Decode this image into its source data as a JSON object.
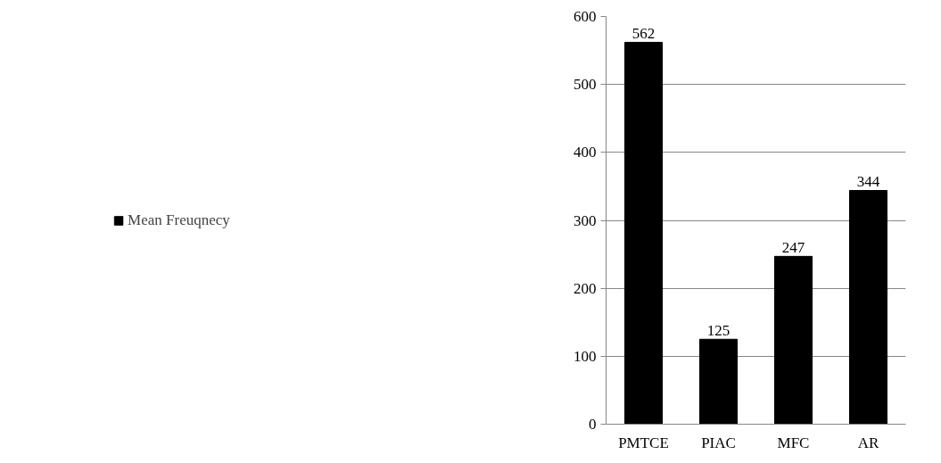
{
  "chart_data": {
    "type": "bar",
    "categories": [
      "PMTCE",
      "PIAC",
      "MFC",
      "AR"
    ],
    "series": [
      {
        "name": "Mean Freuqnecy",
        "color": "#000000",
        "values": [
          562,
          125,
          247,
          344
        ]
      }
    ],
    "ylim": [
      0,
      600
    ],
    "yticks": [
      0,
      100,
      200,
      300,
      400,
      500,
      600
    ],
    "grid": "y",
    "legend": "left",
    "data_labels": true
  }
}
